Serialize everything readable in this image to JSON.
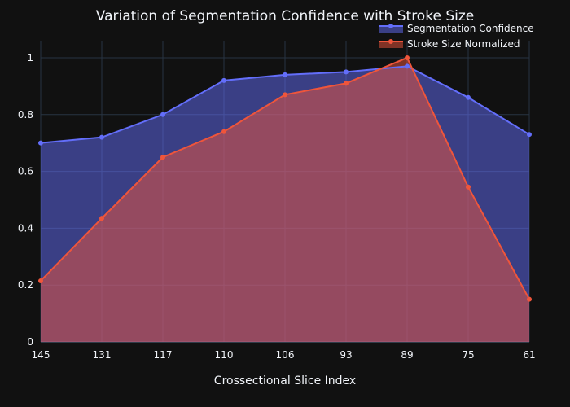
{
  "chart_data": {
    "type": "area",
    "title": "Variation of Segmentation Confidence with Stroke Size",
    "xlabel": "Crossectional Slice Index",
    "ylabel": "",
    "categories": [
      "145",
      "131",
      "117",
      "110",
      "106",
      "93",
      "89",
      "75",
      "61"
    ],
    "ylim": [
      0,
      1.06
    ],
    "yticks": [
      "0",
      "0.2",
      "0.4",
      "0.6",
      "0.8",
      "1"
    ],
    "yticks_values": [
      0,
      0.2,
      0.4,
      0.6,
      0.8,
      1
    ],
    "grid": true,
    "legend_position": "top-right",
    "series": [
      {
        "name": "Segmentation Confidence",
        "color": "#636efa",
        "fill": "rgba(99,110,250,0.5)",
        "values": [
          0.7,
          0.72,
          0.8,
          0.92,
          0.94,
          0.95,
          0.97,
          0.86,
          0.73
        ]
      },
      {
        "name": "Stroke Size Normalized",
        "color": "#ef553b",
        "fill": "rgba(239,85,59,0.5)",
        "values": [
          0.215,
          0.435,
          0.65,
          0.74,
          0.87,
          0.91,
          1.0,
          0.545,
          0.15
        ]
      }
    ]
  }
}
